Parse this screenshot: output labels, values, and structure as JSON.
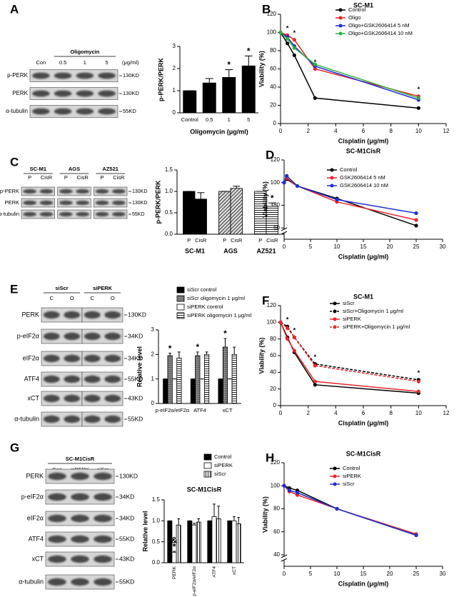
{
  "chart_data": [
    {
      "type": "bar",
      "ylabel": "p-PERK/PERK",
      "xlabel": "Oligomycin (μg/ml)",
      "categories": [
        "Control",
        "0.5",
        "1",
        "5"
      ],
      "values": [
        1,
        1.35,
        1.6,
        2.12
      ],
      "errors": [
        0,
        0.2,
        0.35,
        0.45
      ],
      "color": "#000000",
      "ylim": [
        0,
        3
      ],
      "yticks": [
        0,
        1,
        2,
        3
      ],
      "annotations": [
        {
          "text": "*",
          "category": 2
        },
        {
          "text": "*",
          "category": 3
        }
      ]
    },
    {
      "type": "line",
      "panel_label": "B",
      "title": "SC-M1",
      "xlabel": "Cisplatin (μg/ml)",
      "ylabel": "Viability (%)",
      "x": [
        0,
        0.5,
        1,
        2.5,
        10
      ],
      "xlim": [
        0,
        12
      ],
      "xticks": [
        0,
        2,
        4,
        6,
        8,
        10,
        12
      ],
      "ylim": [
        0,
        120
      ],
      "yticks": [
        0,
        20,
        40,
        60,
        80,
        100,
        120
      ],
      "series": [
        {
          "name": "Control",
          "color": "#000000",
          "values": [
            100,
            88,
            75,
            28,
            17
          ]
        },
        {
          "name": "Oligo",
          "color": "#e8262a",
          "values": [
            100,
            97,
            92,
            60,
            30
          ]
        },
        {
          "name": "Oligo+GSK2606414 5 nM",
          "color": "#2030d0",
          "values": [
            100,
            95,
            85,
            63,
            26
          ]
        },
        {
          "name": "Oligo+GSK2606414 10 nM",
          "color": "#30b040",
          "values": [
            100,
            93,
            83,
            65,
            28
          ]
        }
      ],
      "annotations": [
        {
          "text": "*",
          "series": 1,
          "index": 1
        },
        {
          "text": "*",
          "series": 1,
          "index": 2
        },
        {
          "text": "*",
          "series": 1,
          "index": 3
        },
        {
          "text": "*",
          "series": 1,
          "index": 4
        }
      ]
    },
    {
      "type": "bar",
      "ylabel": "p-PERK/PERK",
      "categories": [
        "SC-M1",
        "AGS",
        "AZ521"
      ],
      "series": [
        {
          "name": "P",
          "values": [
            1,
            1,
            1
          ],
          "errors": [
            0,
            0,
            0
          ]
        },
        {
          "name": "CisR",
          "values": [
            0.82,
            1.07,
            0.65
          ],
          "errors": [
            0.15,
            0.05,
            0.08
          ]
        }
      ],
      "fills": [
        "solid",
        "diagonal",
        "horizontal"
      ],
      "ylim": [
        0,
        1.5
      ],
      "yticks": [
        {
          "value": 0,
          "label": "0.0"
        },
        0.5,
        {
          "value": 1,
          "label": "1.0"
        },
        1.5
      ],
      "annotations": [
        {
          "text": "*",
          "category": 2,
          "series": 1
        }
      ]
    },
    {
      "type": "line",
      "panel_label": "D",
      "title": "SC-M1CisR",
      "xlabel": "Cisplatin (μg/ml)",
      "ylabel": "Viability (%)",
      "x": [
        0,
        0.5,
        2.5,
        10,
        25
      ],
      "xlim": [
        0,
        30
      ],
      "xticks": [
        0,
        5,
        10,
        15,
        20,
        25,
        30
      ],
      "ylim": [
        50,
        120
      ],
      "yticks": [
        60,
        80,
        100,
        120
      ],
      "y_break": true,
      "series": [
        {
          "name": "Control",
          "color": "#000000",
          "values": [
            100,
            103,
            97,
            86,
            62
          ]
        },
        {
          "name": "GSK2606414 5 nM",
          "color": "#e8262a",
          "values": [
            100,
            104,
            97,
            83,
            67
          ]
        },
        {
          "name": "GSK2606414 10 nM",
          "color": "#2030d0",
          "values": [
            100,
            106,
            97,
            85,
            73
          ]
        }
      ]
    },
    {
      "type": "bar",
      "ylabel": "Relative level",
      "categories": [
        "p-eIF2α/eIF2α",
        "ATF4",
        "xCT"
      ],
      "series": [
        {
          "name": "siScr control",
          "pattern": "solid",
          "values": [
            1,
            1,
            1
          ],
          "errors": [
            0,
            0,
            0
          ]
        },
        {
          "name": "siScr oligomycin 1 μg/ml",
          "pattern": "dots",
          "values": [
            1.95,
            1.95,
            2.3
          ],
          "errors": [
            0.1,
            0.15,
            0.35
          ]
        },
        {
          "name": "siPERK control",
          "pattern": "none",
          "values": [
            1,
            1,
            1
          ],
          "errors": [
            0,
            0,
            0
          ]
        },
        {
          "name": "siPERK oligomycin 1 μg/ml",
          "pattern": "horizontal",
          "values": [
            1.85,
            2.0,
            2.0
          ],
          "errors": [
            0.25,
            0.1,
            0.3
          ]
        }
      ],
      "ylim": [
        0,
        3
      ],
      "yticks": [
        0,
        1,
        2,
        3
      ],
      "legend": true,
      "annotations": [
        {
          "text": "*",
          "category": 0,
          "series": 1
        },
        {
          "text": "*",
          "category": 1,
          "series": 1
        },
        {
          "text": "*",
          "category": 2,
          "series": 1
        }
      ]
    },
    {
      "type": "line",
      "panel_label": "F",
      "title": "SC-M1",
      "xlabel": "Cisplatin (μg/ml)",
      "ylabel": "Viability (%)",
      "x": [
        0,
        0.5,
        1,
        2.5,
        10
      ],
      "xlim": [
        0,
        12
      ],
      "xticks": [
        0,
        2,
        4,
        6,
        8,
        10,
        12
      ],
      "ylim": [
        0,
        120
      ],
      "yticks": [
        0,
        20,
        40,
        60,
        80,
        100,
        120
      ],
      "series": [
        {
          "name": "siScr",
          "color": "#000000",
          "dash": false,
          "values": [
            100,
            82,
            64,
            25,
            15
          ]
        },
        {
          "name": "siScr+Oligomycin 1 μg/ml",
          "color": "#000000",
          "dash": true,
          "values": [
            100,
            95,
            82,
            50,
            31
          ]
        },
        {
          "name": "siPERK",
          "color": "#e8262a",
          "dash": false,
          "values": [
            100,
            80,
            66,
            29,
            17
          ]
        },
        {
          "name": "siPERK+Oligomycin 1 μg/ml",
          "color": "#e8262a",
          "dash": true,
          "values": [
            100,
            93,
            82,
            48,
            29
          ]
        }
      ],
      "annotations": [
        {
          "text": "*",
          "series": 1,
          "index": 1
        },
        {
          "text": "*",
          "series": 1,
          "index": 2
        },
        {
          "text": "*",
          "series": 1,
          "index": 3
        },
        {
          "text": "*",
          "series": 1,
          "index": 4
        }
      ]
    },
    {
      "type": "bar",
      "title": "SC-M1CisR",
      "ylabel": "Relative level",
      "categories": [
        "PERK",
        "p-eIF2α/eIF2α",
        "ATF4",
        "xCT"
      ],
      "series": [
        {
          "name": "Control",
          "pattern": "solid",
          "values": [
            1,
            1,
            1,
            1
          ],
          "errors": [
            0,
            0,
            0,
            0
          ]
        },
        {
          "name": "siPERK",
          "pattern": "none",
          "values": [
            0.25,
            0.9,
            1.1,
            1.0
          ],
          "errors": [
            0.02,
            0.04,
            0.3,
            0.1
          ]
        },
        {
          "name": "siScr",
          "pattern": "vertical",
          "values": [
            0.9,
            0.97,
            1.05,
            0.93
          ],
          "errors": [
            0.15,
            0.08,
            0.3,
            0.15
          ]
        }
      ],
      "ylim": [
        0,
        1.5
      ],
      "yticks": [
        {
          "value": 0,
          "label": "0.0"
        },
        0.5,
        {
          "value": 1,
          "label": "1.0"
        },
        1.5
      ],
      "legend": true,
      "annotations": [
        {
          "text": "*",
          "category": 0,
          "series": 1
        },
        {
          "text": "&",
          "category": 0,
          "series": 1
        }
      ]
    },
    {
      "type": "line",
      "panel_label": "H",
      "title": "SC-M1CisR",
      "xlabel": "Cisplatin (μg/ml)",
      "ylabel": "Viability (%)",
      "x": [
        0,
        1,
        2.5,
        10,
        25
      ],
      "xlim": [
        0,
        30
      ],
      "xticks": [
        0,
        5,
        10,
        15,
        20,
        25,
        30
      ],
      "ylim": [
        30,
        120
      ],
      "yticks": [
        40,
        60,
        80,
        100,
        120
      ],
      "y_break": true,
      "series": [
        {
          "name": "Control",
          "color": "#000000",
          "values": [
            100,
            98,
            96,
            80,
            57
          ]
        },
        {
          "name": "siPERK",
          "color": "#e8262a",
          "values": [
            100,
            95,
            92,
            80,
            58
          ]
        },
        {
          "name": "siScr",
          "color": "#2030d0",
          "values": [
            100,
            96,
            94,
            80,
            57
          ]
        }
      ]
    }
  ],
  "blots": [
    {
      "panel_label": "A",
      "header": "Oligomycin",
      "unit": "(μg/ml)",
      "columns": [
        "Con",
        "0.5",
        "1",
        "5"
      ],
      "rows": [
        {
          "name": "p-PERK",
          "size": "130KD"
        },
        {
          "name": "PERK",
          "size": "130KD"
        },
        {
          "name": "α-tubulin",
          "size": "55KD"
        }
      ]
    },
    {
      "panel_label": "C",
      "groups": [
        {
          "name": "SC-M1",
          "columns": [
            "P",
            "CisR"
          ]
        },
        {
          "name": "AGS",
          "columns": [
            "P",
            "CisR"
          ]
        },
        {
          "name": "AZ521",
          "columns": [
            "P",
            "CisR"
          ]
        }
      ],
      "rows": [
        {
          "name": "p-PERK",
          "size": "130KD"
        },
        {
          "name": "PERK",
          "size": "130KD"
        },
        {
          "name": "α-tubulin",
          "size": "55KD"
        }
      ]
    },
    {
      "panel_label": "E",
      "groups": [
        {
          "name": "siScr",
          "columns": [
            "C",
            "O"
          ]
        },
        {
          "name": "siPERK",
          "columns": [
            "C",
            "O"
          ]
        }
      ],
      "rows": [
        {
          "name": "PERK",
          "size": "130KD"
        },
        {
          "name": "p-eIF2α",
          "size": "34KD"
        },
        {
          "name": "eIF2α",
          "size": "34KD"
        },
        {
          "name": "ATF4",
          "size": "55KD"
        },
        {
          "name": "xCT",
          "size": "43KD"
        },
        {
          "name": "α-tubulin",
          "size": "55KD"
        }
      ]
    },
    {
      "panel_label": "G",
      "header": "SC-M1CisR",
      "columns": [
        "Con",
        "siPERK",
        "siScr"
      ],
      "rows": [
        {
          "name": "PERK",
          "size": "130KD"
        },
        {
          "name": "p-eIF2α",
          "size": "34KD"
        },
        {
          "name": "eIF2α",
          "size": "34KD"
        },
        {
          "name": "ATF4",
          "size": "55KD"
        },
        {
          "name": "xCT",
          "size": "43KD"
        },
        {
          "name": "α-tubulin",
          "size": "55KD"
        }
      ]
    }
  ]
}
